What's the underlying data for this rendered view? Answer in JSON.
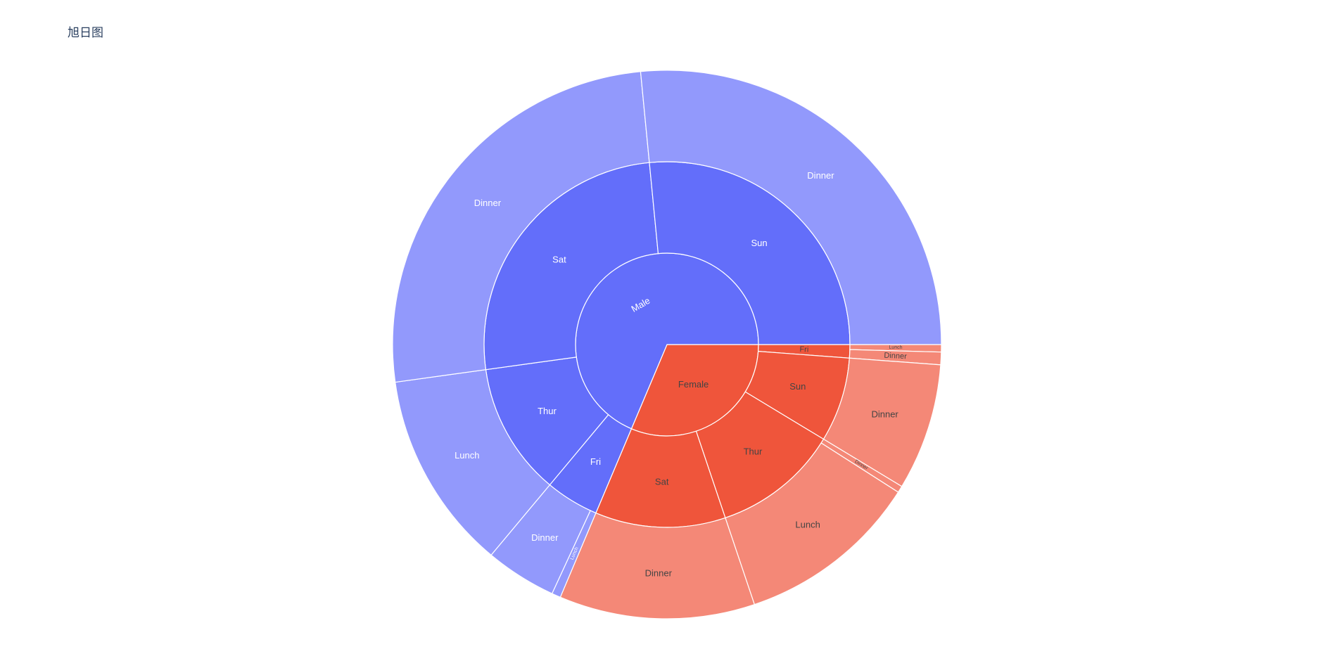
{
  "title": "旭日图",
  "chart_data": {
    "type": "sunburst",
    "title": "旭日图",
    "levels": [
      "sex",
      "day",
      "time"
    ],
    "colors": {
      "Male": "#636efa",
      "Female": "#ef553b",
      "Male_outer": "#9299fc",
      "Female_outer": "#f48877",
      "border": "#ffffff",
      "label_light": "#ffffff",
      "label_dark": "#444444"
    },
    "nodes": [
      {
        "id": "Female/Fri/Dinner",
        "label": "Dinner",
        "parent": "Female/Fri",
        "value": 35.49
      },
      {
        "id": "Female/Sat/Dinner",
        "label": "Dinner",
        "parent": "Female/Sat",
        "value": 551.05
      },
      {
        "id": "Female/Sun/Dinner",
        "label": "Dinner",
        "parent": "Female/Sun",
        "value": 357.7
      },
      {
        "id": "Female/Thur/Dinner",
        "label": "Dinner",
        "parent": "Female/Thur",
        "value": 18.78
      },
      {
        "id": "Male/Fri/Dinner",
        "label": "Dinner",
        "parent": "Male/Fri",
        "value": 200.55
      },
      {
        "id": "Male/Sat/Dinner",
        "label": "Dinner",
        "parent": "Male/Sat",
        "value": 1227.35
      },
      {
        "id": "Male/Sun/Dinner",
        "label": "Dinner",
        "parent": "Male/Sun",
        "value": 1269.46
      },
      {
        "id": "Female/Fri/Lunch",
        "label": "Lunch",
        "parent": "Female/Fri",
        "value": 20.91
      },
      {
        "id": "Female/Thur/Lunch",
        "label": "Lunch",
        "parent": "Female/Thur",
        "value": 516.11
      },
      {
        "id": "Male/Fri/Lunch",
        "label": "Lunch",
        "parent": "Male/Fri",
        "value": 25.03
      },
      {
        "id": "Male/Thur/Lunch",
        "label": "Lunch",
        "parent": "Male/Thur",
        "value": 561.44
      },
      {
        "id": "Female/Fri",
        "label": "Fri",
        "parent": "Female",
        "value": 56.4
      },
      {
        "id": "Female/Sat",
        "label": "Sat",
        "parent": "Female",
        "value": 551.05
      },
      {
        "id": "Female/Sun",
        "label": "Sun",
        "parent": "Female",
        "value": 357.7
      },
      {
        "id": "Female/Thur",
        "label": "Thur",
        "parent": "Female",
        "value": 534.89
      },
      {
        "id": "Male/Fri",
        "label": "Fri",
        "parent": "Male",
        "value": 225.58
      },
      {
        "id": "Male/Sat",
        "label": "Sat",
        "parent": "Male",
        "value": 1227.35
      },
      {
        "id": "Male/Sun",
        "label": "Sun",
        "parent": "Male",
        "value": 1269.46
      },
      {
        "id": "Male/Thur",
        "label": "Thur",
        "parent": "Male",
        "value": 561.44
      },
      {
        "id": "Female",
        "label": "Female",
        "parent": "",
        "value": 1500.04
      },
      {
        "id": "Male",
        "label": "Male",
        "parent": "",
        "value": 3283.83
      }
    ]
  }
}
